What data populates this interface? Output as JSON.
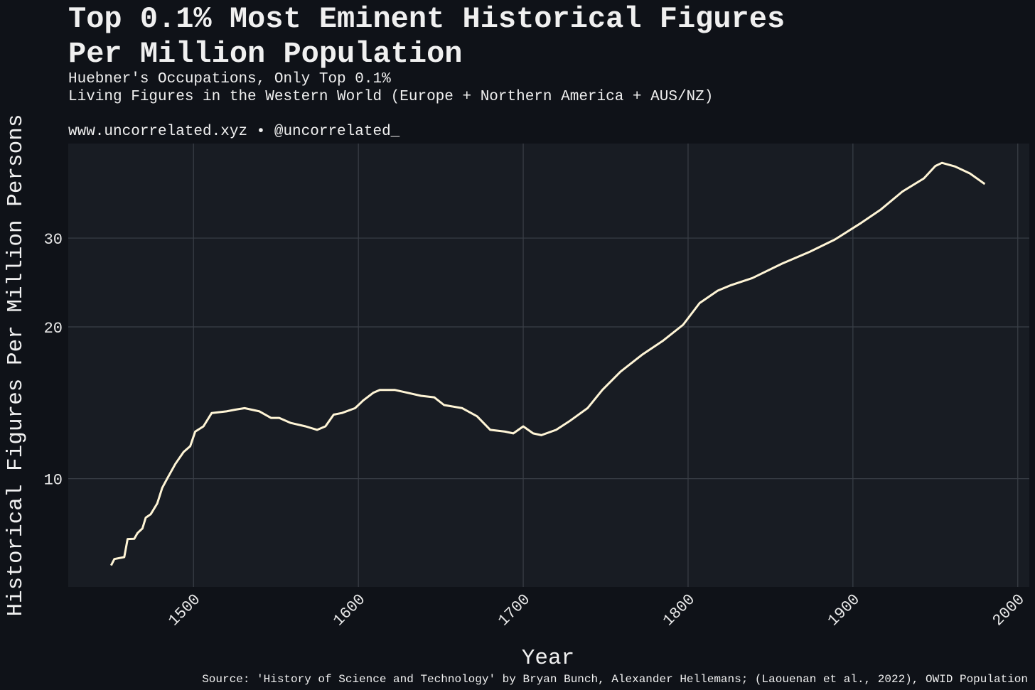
{
  "chart_data": {
    "type": "line",
    "title": [
      "Top 0.1% Most Eminent Historical Figures",
      "Per Million Population"
    ],
    "subtitle": [
      "Huebner's Occupations, Only Top 0.1%",
      "Living Figures in the Western World (Europe + Northern America + AUS/NZ)"
    ],
    "annotation": "www.uncorrelated.xyz • @uncorrelated_",
    "source": "Source: 'History of Science and Technology' by Bryan Bunch, Alexander Hellemans; (Laouenan et al., 2022), OWID Population",
    "x_label": "Year",
    "y_label": "Historical Figures Per Million Persons",
    "color": "#fff5d6",
    "log_y": true,
    "grid": true,
    "xlim": [
      1424,
      2007
    ],
    "ylim": [
      6.1,
      46.2
    ],
    "xticks": [
      1500,
      1600,
      1700,
      1800,
      1900,
      2000
    ],
    "yticks": [
      10,
      20,
      30
    ],
    "x": [
      1450,
      1452,
      1458,
      1460,
      1464,
      1466,
      1469,
      1471,
      1474,
      1478,
      1481,
      1484,
      1489,
      1494,
      1498,
      1501,
      1506,
      1511,
      1520,
      1525,
      1531,
      1540,
      1547,
      1552,
      1559,
      1568,
      1575,
      1580,
      1585,
      1590,
      1598,
      1603,
      1609,
      1613,
      1622,
      1630,
      1638,
      1646,
      1652,
      1663,
      1672,
      1680,
      1689,
      1694,
      1700,
      1706,
      1711,
      1720,
      1728,
      1739,
      1748,
      1759,
      1772,
      1785,
      1797,
      1807,
      1818,
      1826,
      1839,
      1857,
      1874,
      1889,
      1904,
      1917,
      1930,
      1943,
      1950,
      1954,
      1962,
      1971,
      1980
    ],
    "values": [
      6.73,
      6.93,
      6.99,
      7.59,
      7.6,
      7.8,
      7.97,
      8.37,
      8.5,
      8.93,
      9.59,
      10,
      10.7,
      11.3,
      11.6,
      12.4,
      12.7,
      13.5,
      13.6,
      13.7,
      13.8,
      13.6,
      13.2,
      13.2,
      12.9,
      12.7,
      12.5,
      12.7,
      13.4,
      13.5,
      13.8,
      14.3,
      14.8,
      15.0,
      15.0,
      14.8,
      14.6,
      14.5,
      14.0,
      13.8,
      13.3,
      12.5,
      12.4,
      12.3,
      12.7,
      12.3,
      12.2,
      12.5,
      13.0,
      13.8,
      15.0,
      16.3,
      17.6,
      18.8,
      20.2,
      22.3,
      23.6,
      24.2,
      25.0,
      26.7,
      28.2,
      29.8,
      32.0,
      34.2,
      37.1,
      39.4,
      41.7,
      42.3,
      41.6,
      40.3,
      38.4
    ]
  }
}
